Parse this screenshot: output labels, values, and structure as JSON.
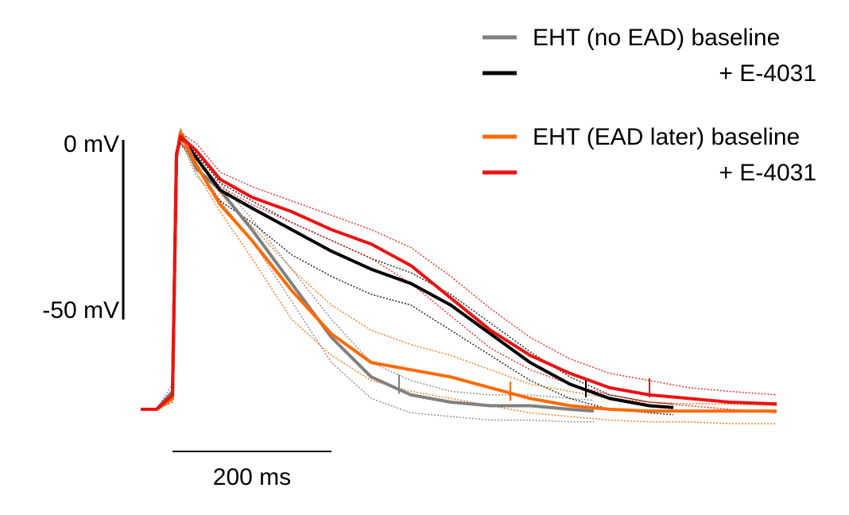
{
  "chart_data": {
    "type": "line",
    "title": "",
    "xlabel": "",
    "ylabel": "",
    "xlim": [
      -200,
      4100
    ],
    "ylim": [
      -88,
      3
    ],
    "x_units": "ms",
    "y_units": "mV",
    "axes_shown": false,
    "grid": false,
    "legend_position": "top-right",
    "scale_bars": {
      "y": {
        "from": 0,
        "to": -50,
        "top_label": "0 mV",
        "bottom_label": "-50 mV"
      },
      "x": {
        "length": 200,
        "label": "200 ms"
      }
    },
    "series": [
      {
        "name": "EHT (no EAD) baseline",
        "color": "#808080",
        "x": [
          -40,
          -20,
          0,
          5,
          10,
          30,
          60,
          100,
          150,
          200,
          250,
          300,
          350,
          400,
          450,
          500,
          530
        ],
        "y": [
          -75,
          -75,
          -70,
          -5,
          2,
          -8,
          -14,
          -25,
          -40,
          -55,
          -66,
          -71,
          -73,
          -74,
          -74,
          -75,
          -75.5
        ],
        "lower": [
          -75,
          -75,
          -72,
          -6,
          0,
          -10,
          -17,
          -28,
          -45,
          -62,
          -72,
          -76,
          -77,
          -78,
          -78,
          -78.5,
          -78.5
        ],
        "upper": [
          -75,
          -75,
          -68,
          -4,
          3,
          -7,
          -12,
          -22,
          -36,
          -50,
          -62,
          -67,
          -70,
          -71,
          -71,
          -72,
          -72.5
        ],
        "apd_marker": {
          "x": 285,
          "y": -68
        }
      },
      {
        "name": "+ E-4031",
        "color": "#000000",
        "x": [
          -40,
          -20,
          0,
          5,
          10,
          30,
          60,
          100,
          150,
          200,
          250,
          300,
          350,
          400,
          450,
          500,
          550,
          600,
          630
        ],
        "y": [
          -75,
          -75,
          -72,
          -4,
          1,
          -5,
          -14,
          -19,
          -25,
          -31,
          -36,
          -40,
          -46,
          -54,
          -62,
          -68,
          -72,
          -74,
          -74.5
        ],
        "lower": [
          -75,
          -75,
          -73,
          -5,
          -1,
          -7,
          -17,
          -23,
          -32,
          -38,
          -43,
          -46,
          -53,
          -60,
          -67,
          -72,
          -75,
          -76,
          -76.5
        ],
        "upper": [
          -75,
          -75,
          -71,
          -3,
          2,
          -4,
          -12,
          -17,
          -23,
          -28,
          -33,
          -37,
          -43,
          -51,
          -59,
          -66,
          -71,
          -73,
          -73.5
        ],
        "apd_marker": {
          "x": 520,
          "y": -69
        }
      },
      {
        "name": "EHT (EAD later) baseline",
        "color": "#FF6A00",
        "x": [
          -40,
          -20,
          0,
          5,
          10,
          30,
          60,
          100,
          150,
          200,
          250,
          300,
          350,
          400,
          450,
          500,
          550,
          600,
          650,
          700,
          760
        ],
        "y": [
          -75,
          -75,
          -72,
          -5,
          2,
          -7,
          -18,
          -28,
          -42,
          -54,
          -62,
          -64,
          -66,
          -69,
          -72,
          -74,
          -75,
          -75.5,
          -75.5,
          -75.5,
          -75.5
        ],
        "lower": [
          -75,
          -75,
          -73,
          -6,
          0,
          -9,
          -20,
          -33,
          -50,
          -60,
          -67,
          -70,
          -72,
          -74,
          -76,
          -77,
          -78,
          -78.5,
          -78.5,
          -79,
          -79
        ],
        "upper": [
          -75,
          -75,
          -71,
          -4,
          3,
          -5,
          -15,
          -24,
          -36,
          -46,
          -53,
          -57,
          -60,
          -64,
          -68,
          -70,
          -72,
          -73,
          -73.5,
          -73.5,
          -74
        ],
        "apd_marker": {
          "x": 425,
          "y": -70
        }
      },
      {
        "name": "+ E-4031",
        "color": "#EE1111",
        "x": [
          -40,
          -20,
          0,
          5,
          10,
          30,
          60,
          100,
          150,
          200,
          250,
          300,
          350,
          400,
          450,
          500,
          550,
          600,
          650,
          700,
          760
        ],
        "y": [
          -75,
          -75,
          -71,
          -4,
          1,
          -3,
          -11,
          -16,
          -20,
          -25,
          -29,
          -35,
          -44,
          -53,
          -60,
          -65,
          -69,
          -71,
          -72,
          -73,
          -73.5
        ],
        "lower": [
          -75,
          -75,
          -72,
          -5,
          -1,
          -5,
          -13,
          -18,
          -23,
          -28,
          -33,
          -40,
          -49,
          -58,
          -64,
          -68,
          -71,
          -73,
          -74,
          -75,
          -76
        ],
        "upper": [
          -75,
          -75,
          -70,
          -3,
          2,
          -1,
          -9,
          -13,
          -17,
          -21,
          -25,
          -30,
          -38,
          -47,
          -55,
          -61,
          -65,
          -67,
          -69,
          -70,
          -71
        ],
        "apd_marker": {
          "x": 600,
          "y": -69
        }
      }
    ]
  }
}
